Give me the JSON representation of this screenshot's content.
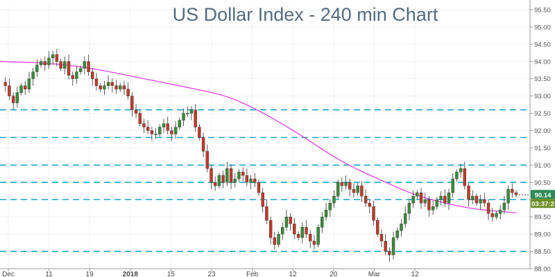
{
  "colors": {
    "background": "#ffffff",
    "grid": "#eef1f4",
    "axis": "#999999",
    "up_candle": "#3a8a3a",
    "down_candle": "#c0392b",
    "moving_average": "#e040e0",
    "level_lines": "#1aa3c9",
    "price_badge": "#2e8b57",
    "time_badge": "#6b8e23"
  },
  "chart_data": {
    "type": "candlestick",
    "title": "US Dollar Index - 240 min Chart",
    "xlabel": "",
    "ylabel": "",
    "ylim": [
      88.0,
      95.62
    ],
    "y_ticks": [
      "95.50",
      "95.00",
      "94.50",
      "94.00",
      "93.50",
      "93.00",
      "92.50",
      "92.00",
      "91.50",
      "91.00",
      "90.50",
      "90.00",
      "89.50",
      "89.00",
      "88.50",
      "88.00"
    ],
    "x_ticks": [
      {
        "label": "Dec",
        "bold": false
      },
      {
        "label": "11",
        "bold": false
      },
      {
        "label": "19",
        "bold": false
      },
      {
        "label": "2018",
        "bold": true
      },
      {
        "label": "15",
        "bold": false
      },
      {
        "label": "23",
        "bold": false
      },
      {
        "label": "Feb",
        "bold": false
      },
      {
        "label": "12",
        "bold": false
      },
      {
        "label": "20",
        "bold": false
      },
      {
        "label": "Mar",
        "bold": false
      },
      {
        "label": "12",
        "bold": false
      }
    ],
    "horizontal_levels": [
      92.6,
      91.8,
      91.0,
      90.5,
      90.0,
      88.5
    ],
    "price_path": [
      93.4,
      93.3,
      93.0,
      92.8,
      93.1,
      93.3,
      93.2,
      93.5,
      93.7,
      93.9,
      94.0,
      93.9,
      94.1,
      94.2,
      94.0,
      93.8,
      94.0,
      93.6,
      93.5,
      93.7,
      93.8,
      94.0,
      93.7,
      93.5,
      93.3,
      93.2,
      93.3,
      93.4,
      93.3,
      93.2,
      93.3,
      93.2,
      93.0,
      92.6,
      92.5,
      92.2,
      92.1,
      92.0,
      91.9,
      91.9,
      92.1,
      92.2,
      92.0,
      91.9,
      92.1,
      92.3,
      92.5,
      92.5,
      92.6,
      92.1,
      91.8,
      91.4,
      90.9,
      90.5,
      90.4,
      90.7,
      90.5,
      90.9,
      90.5,
      90.6,
      90.8,
      90.7,
      90.5,
      90.6,
      90.5,
      90.2,
      89.8,
      89.4,
      88.9,
      88.7,
      89.0,
      89.2,
      89.5,
      89.3,
      89.0,
      88.9,
      89.2,
      89.0,
      88.8,
      88.7,
      89.2,
      89.5,
      89.7,
      89.9,
      90.1,
      90.5,
      90.4,
      90.5,
      90.3,
      90.2,
      90.4,
      90.1,
      89.9,
      89.8,
      89.4,
      89.0,
      88.8,
      88.5,
      88.4,
      88.9,
      89.1,
      89.3,
      89.6,
      89.9,
      90.1,
      90.2,
      89.9,
      90.0,
      89.7,
      89.8,
      90.0,
      90.1,
      89.9,
      90.2,
      90.6,
      90.8,
      90.9,
      90.4,
      90.0,
      90.1,
      89.9,
      90.0,
      89.9,
      89.6,
      89.5,
      89.6,
      89.7,
      89.9,
      90.3,
      90.2,
      90.14
    ],
    "moving_average": [
      {
        "t": 0.0,
        "v": 94.0
      },
      {
        "t": 0.1,
        "v": 93.95
      },
      {
        "t": 0.18,
        "v": 93.8
      },
      {
        "t": 0.28,
        "v": 93.5
      },
      {
        "t": 0.38,
        "v": 93.2
      },
      {
        "t": 0.44,
        "v": 93.0
      },
      {
        "t": 0.5,
        "v": 92.6
      },
      {
        "t": 0.58,
        "v": 91.9
      },
      {
        "t": 0.66,
        "v": 91.1
      },
      {
        "t": 0.74,
        "v": 90.55
      },
      {
        "t": 0.8,
        "v": 90.15
      },
      {
        "t": 0.86,
        "v": 89.9
      },
      {
        "t": 0.92,
        "v": 89.72
      },
      {
        "t": 1.0,
        "v": 89.62
      }
    ],
    "last_price": {
      "value": 90.14,
      "label": "90.14",
      "countdown": "03:37:2"
    }
  }
}
